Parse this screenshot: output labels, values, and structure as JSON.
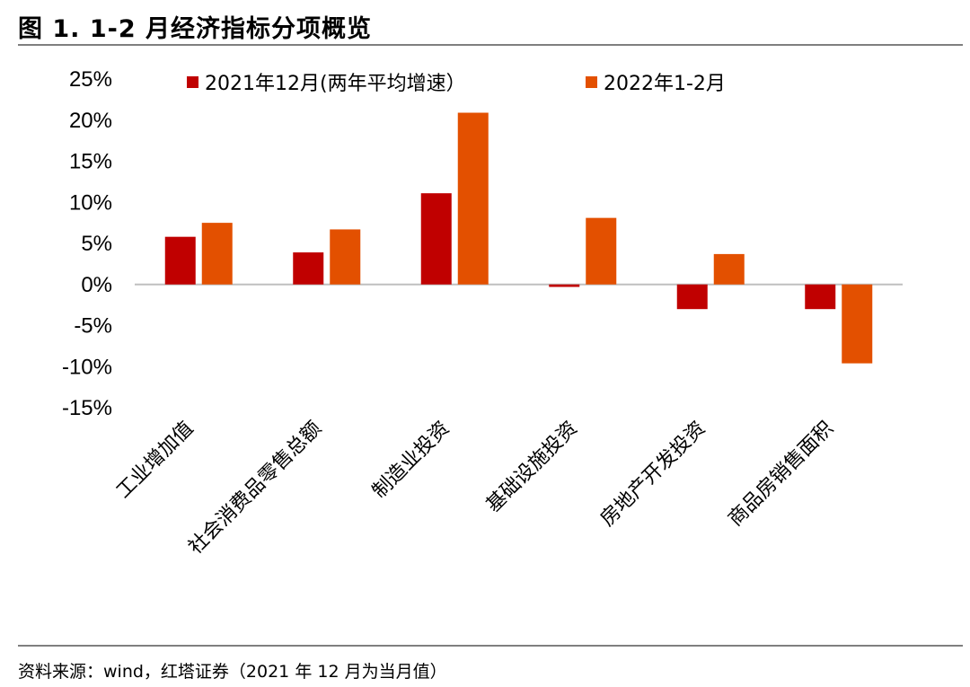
{
  "figure": {
    "title": "图 1. 1-2 月经济指标分项概览",
    "source": "资料来源：wind，红塔证券（2021 年 12 月为当月值）"
  },
  "colors": {
    "series1": "#c00000",
    "series2": "#e35000",
    "axis": "#bfbfbf"
  },
  "chart_data": {
    "type": "bar",
    "categories": [
      "工业增加值",
      "社会消费品零售总额",
      "制造业投资",
      "基础设施投资",
      "房地产开发投资",
      "商品房销售面积"
    ],
    "series": [
      {
        "name": "2021年12月(两年平均增速）",
        "values": [
          5.8,
          3.9,
          11.1,
          -0.3,
          -3.0,
          -3.0
        ]
      },
      {
        "name": "2022年1-2月",
        "values": [
          7.5,
          6.7,
          20.9,
          8.1,
          3.7,
          -9.6
        ]
      }
    ],
    "ylim": [
      -15,
      25
    ],
    "yticks": [
      25,
      20,
      15,
      10,
      5,
      0,
      -5,
      -10,
      -15
    ],
    "ytick_labels": [
      "25%",
      "20%",
      "15%",
      "10%",
      "5%",
      "0%",
      "-5%",
      "-10%",
      "-15%"
    ],
    "legend_position": "top",
    "grid": false
  }
}
